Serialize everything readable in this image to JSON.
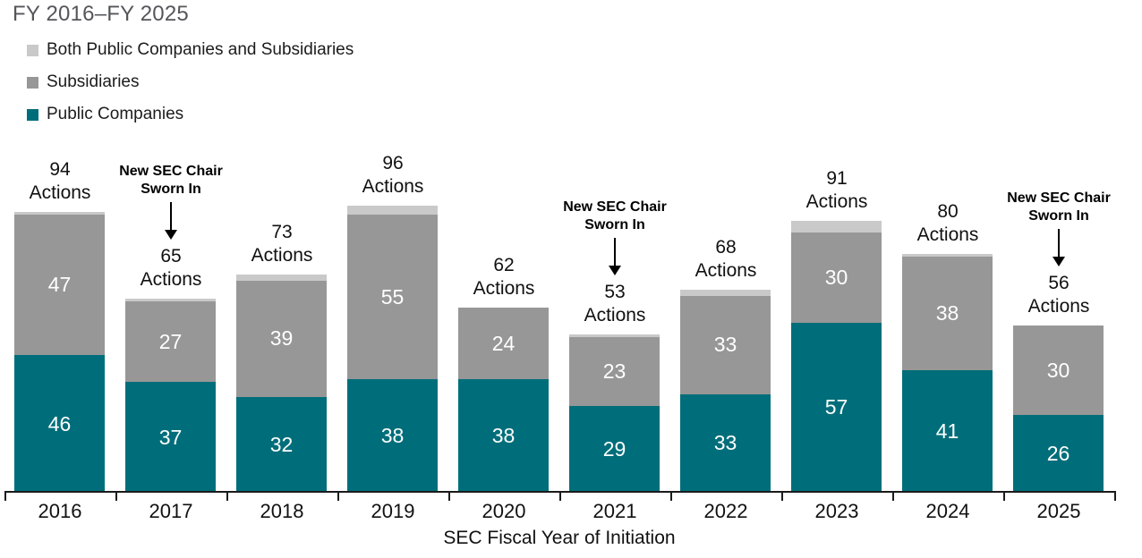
{
  "header": {
    "title": "FY 2016–FY 2025"
  },
  "chart_data": {
    "type": "bar",
    "stacked": true,
    "title": "FY 2016–FY 2025",
    "xlabel": "SEC Fiscal Year of Initiation",
    "ylabel": "",
    "ylim": [
      0,
      96
    ],
    "grid": false,
    "legend_position": "top-left",
    "categories": [
      "2016",
      "2017",
      "2018",
      "2019",
      "2020",
      "2021",
      "2022",
      "2023",
      "2024",
      "2025"
    ],
    "series": [
      {
        "name": "Public Companies",
        "color": "#006e7a",
        "values": [
          46,
          37,
          32,
          38,
          38,
          29,
          33,
          57,
          41,
          26
        ]
      },
      {
        "name": "Subsidiaries",
        "color": "#979797",
        "values": [
          47,
          27,
          39,
          55,
          24,
          23,
          33,
          30,
          38,
          30
        ]
      },
      {
        "name": "Both Public Companies and Subsidiaries",
        "color": "#c9c9c9",
        "values": [
          1,
          1,
          2,
          3,
          0,
          1,
          2,
          4,
          1,
          0
        ]
      }
    ],
    "totals": [
      94,
      65,
      73,
      96,
      62,
      53,
      68,
      91,
      80,
      56
    ],
    "total_label_suffix": "Actions",
    "annotations": [
      {
        "category": "2017",
        "lines": [
          "New SEC Chair",
          "Sworn In"
        ]
      },
      {
        "category": "2021",
        "lines": [
          "New SEC Chair",
          "Sworn In"
        ]
      },
      {
        "category": "2025",
        "lines": [
          "New SEC Chair",
          "Sworn In"
        ]
      }
    ],
    "legend": [
      {
        "label": "Both Public Companies and Subsidiaries",
        "color": "#c9c9c9"
      },
      {
        "label": "Subsidiaries",
        "color": "#979797"
      },
      {
        "label": "Public Companies",
        "color": "#006e7a"
      }
    ]
  }
}
